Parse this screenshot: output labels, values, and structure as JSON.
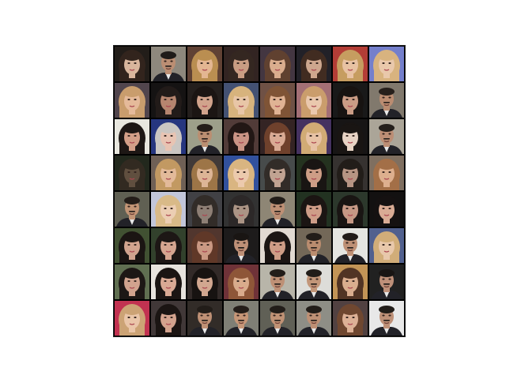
{
  "figure": {
    "background": "#ffffff",
    "grid_rows": 8,
    "grid_cols": 8,
    "frame_color": "#000000"
  },
  "tiles": [
    {
      "bg": "#1a1410",
      "skin": "#d8b49a",
      "hair": "#2a1c14",
      "type": "f"
    },
    {
      "bg": "#8a8478",
      "skin": "#b98a6e",
      "hair": "#161210",
      "type": "m"
    },
    {
      "bg": "#5a3a2c",
      "skin": "#e2b48e",
      "hair": "#b88a4a",
      "type": "f"
    },
    {
      "bg": "#2a1c1a",
      "skin": "#c79a7e",
      "hair": "#2c1f18",
      "type": "f"
    },
    {
      "bg": "#3c2e3a",
      "skin": "#d9aa8a",
      "hair": "#5a3a28",
      "type": "f"
    },
    {
      "bg": "#1a1820",
      "skin": "#cda48a",
      "hair": "#3a2418",
      "type": "f"
    },
    {
      "bg": "#b0362e",
      "skin": "#e8c0a0",
      "hair": "#c49a5a",
      "type": "f"
    },
    {
      "bg": "#6f7ac9",
      "skin": "#e9c6a8",
      "hair": "#d7b07a",
      "type": "f"
    },
    {
      "bg": "#4a3e46",
      "skin": "#e4b896",
      "hair": "#c79a68",
      "type": "f"
    },
    {
      "bg": "#0c0a0a",
      "skin": "#b3806a",
      "hair": "#1a1210",
      "type": "f"
    },
    {
      "bg": "#1c1614",
      "skin": "#d0a088",
      "hair": "#120c0a",
      "type": "f"
    },
    {
      "bg": "#3c4a6e",
      "skin": "#e8c4a4",
      "hair": "#d6b078",
      "type": "f"
    },
    {
      "bg": "#6a4a3e",
      "skin": "#dfb090",
      "hair": "#7a4e2e",
      "type": "f"
    },
    {
      "bg": "#a06a70",
      "skin": "#eac6aa",
      "hair": "#c89a66",
      "type": "f"
    },
    {
      "bg": "#101010",
      "skin": "#c89880",
      "hair": "#0e0a08",
      "type": "f"
    },
    {
      "bg": "#7c7468",
      "skin": "#b8886c",
      "hair": "#1e1612",
      "type": "m"
    },
    {
      "bg": "#e8e6de",
      "skin": "#d29c84",
      "hair": "#140e0c",
      "type": "f"
    },
    {
      "bg": "#1e2e7a",
      "skin": "#e8c2b0",
      "hair": "#c8c4c0",
      "type": "f"
    },
    {
      "bg": "#9a9c86",
      "skin": "#b88a6c",
      "hair": "#1c1410",
      "type": "m"
    },
    {
      "bg": "#4a3430",
      "skin": "#c89080",
      "hair": "#1a0e0c",
      "type": "f"
    },
    {
      "bg": "#2c1c1c",
      "skin": "#d8a890",
      "hair": "#6a3a24",
      "type": "f"
    },
    {
      "bg": "#3e2a5a",
      "skin": "#e6c0a2",
      "hair": "#d0a870",
      "type": "f"
    },
    {
      "bg": "#0e0c0c",
      "skin": "#e6d2c2",
      "hair": "#100c0a",
      "type": "f"
    },
    {
      "bg": "#a8a294",
      "skin": "#ba8a70",
      "hair": "#1c1612",
      "type": "m"
    },
    {
      "bg": "#1a2014",
      "skin": "#5a4838",
      "hair": "#2a2218",
      "type": "f"
    },
    {
      "bg": "#6a5a50",
      "skin": "#e2b896",
      "hair": "#c0955c",
      "type": "f"
    },
    {
      "bg": "#3a3230",
      "skin": "#dcb292",
      "hair": "#9a7040",
      "type": "f"
    },
    {
      "bg": "#2a4a9a",
      "skin": "#ecc8aa",
      "hair": "#d8b27c",
      "type": "f"
    },
    {
      "bg": "#404444",
      "skin": "#bfa08e",
      "hair": "#2a2420",
      "type": "f"
    },
    {
      "bg": "#1c2a16",
      "skin": "#cc9a82",
      "hair": "#100c0a",
      "type": "f"
    },
    {
      "bg": "#2e2a28",
      "skin": "#b4907e",
      "hair": "#1a1410",
      "type": "f"
    },
    {
      "bg": "#7a6a5a",
      "skin": "#dcac8a",
      "hair": "#a06a40",
      "type": "f"
    },
    {
      "bg": "#5a5a4c",
      "skin": "#c09070",
      "hair": "#1c1410",
      "type": "m"
    },
    {
      "bg": "#c0c4d8",
      "skin": "#ecccb0",
      "hair": "#d8b884",
      "type": "f"
    },
    {
      "bg": "#3a3a3e",
      "skin": "#8a7a70",
      "hair": "#2a2420",
      "type": "f"
    },
    {
      "bg": "#2a2a2a",
      "skin": "#a89080",
      "hair": "#242020",
      "type": "f"
    },
    {
      "bg": "#8a8270",
      "skin": "#bc8c70",
      "hair": "#1a1410",
      "type": "m"
    },
    {
      "bg": "#1a2a18",
      "skin": "#cc9a84",
      "hair": "#120c0a",
      "type": "f"
    },
    {
      "bg": "#243024",
      "skin": "#c49480",
      "hair": "#100c0a",
      "type": "f"
    },
    {
      "bg": "#0a0808",
      "skin": "#d8a890",
      "hair": "#0c0808",
      "type": "f"
    },
    {
      "bg": "#3a4a2a",
      "skin": "#d0a08a",
      "hair": "#120c0a",
      "type": "f"
    },
    {
      "bg": "#2a3a24",
      "skin": "#d4a28c",
      "hair": "#140e0c",
      "type": "f"
    },
    {
      "bg": "#4a2e26",
      "skin": "#c8947e",
      "hair": "#5a3020",
      "type": "f"
    },
    {
      "bg": "#141212",
      "skin": "#bc8c72",
      "hair": "#100c0a",
      "type": "m"
    },
    {
      "bg": "#e0d8d0",
      "skin": "#cc9a82",
      "hair": "#120c0a",
      "type": "f"
    },
    {
      "bg": "#6e6252",
      "skin": "#b8886a",
      "hair": "#1a1410",
      "type": "m"
    },
    {
      "bg": "#e4e4e0",
      "skin": "#bc8c70",
      "hair": "#181210",
      "type": "m"
    },
    {
      "bg": "#4a5a8a",
      "skin": "#e8c6a8",
      "hair": "#d0aa74",
      "type": "f"
    },
    {
      "bg": "#5a6a4a",
      "skin": "#d0a08a",
      "hair": "#140e0c",
      "type": "f"
    },
    {
      "bg": "#e6e2dc",
      "skin": "#d8a690",
      "hair": "#120c0a",
      "type": "f"
    },
    {
      "bg": "#2a2220",
      "skin": "#d0a48c",
      "hair": "#0e0a08",
      "type": "f"
    },
    {
      "bg": "#6a2a30",
      "skin": "#d8a888",
      "hair": "#8a5030",
      "type": "f"
    },
    {
      "bg": "#b6b2a6",
      "skin": "#bc8c70",
      "hair": "#1a1410",
      "type": "m"
    },
    {
      "bg": "#dcdcd8",
      "skin": "#c09274",
      "hair": "#1a1410",
      "type": "m"
    },
    {
      "bg": "#c09050",
      "skin": "#d8aa8a",
      "hair": "#4a2c1c",
      "type": "f"
    },
    {
      "bg": "#181818",
      "skin": "#bc8c74",
      "hair": "#100c0a",
      "type": "m"
    },
    {
      "bg": "#c02a4a",
      "skin": "#eac4a6",
      "hair": "#caa070",
      "type": "f"
    },
    {
      "bg": "#3a3030",
      "skin": "#d2a08a",
      "hair": "#120c0a",
      "type": "f"
    },
    {
      "bg": "#2a2420",
      "skin": "#bc8c70",
      "hair": "#1a1410",
      "type": "m"
    },
    {
      "bg": "#7a7a70",
      "skin": "#c49272",
      "hair": "#1c1410",
      "type": "m"
    },
    {
      "bg": "#5a5a50",
      "skin": "#be8e70",
      "hair": "#1a1410",
      "type": "m"
    },
    {
      "bg": "#8a8a82",
      "skin": "#bc8c70",
      "hair": "#1a1410",
      "type": "m"
    },
    {
      "bg": "#4a3a3a",
      "skin": "#dcae92",
      "hair": "#6a4028",
      "type": "f"
    },
    {
      "bg": "#e8e8e8",
      "skin": "#bc8c72",
      "hair": "#1a1410",
      "type": "m"
    }
  ]
}
